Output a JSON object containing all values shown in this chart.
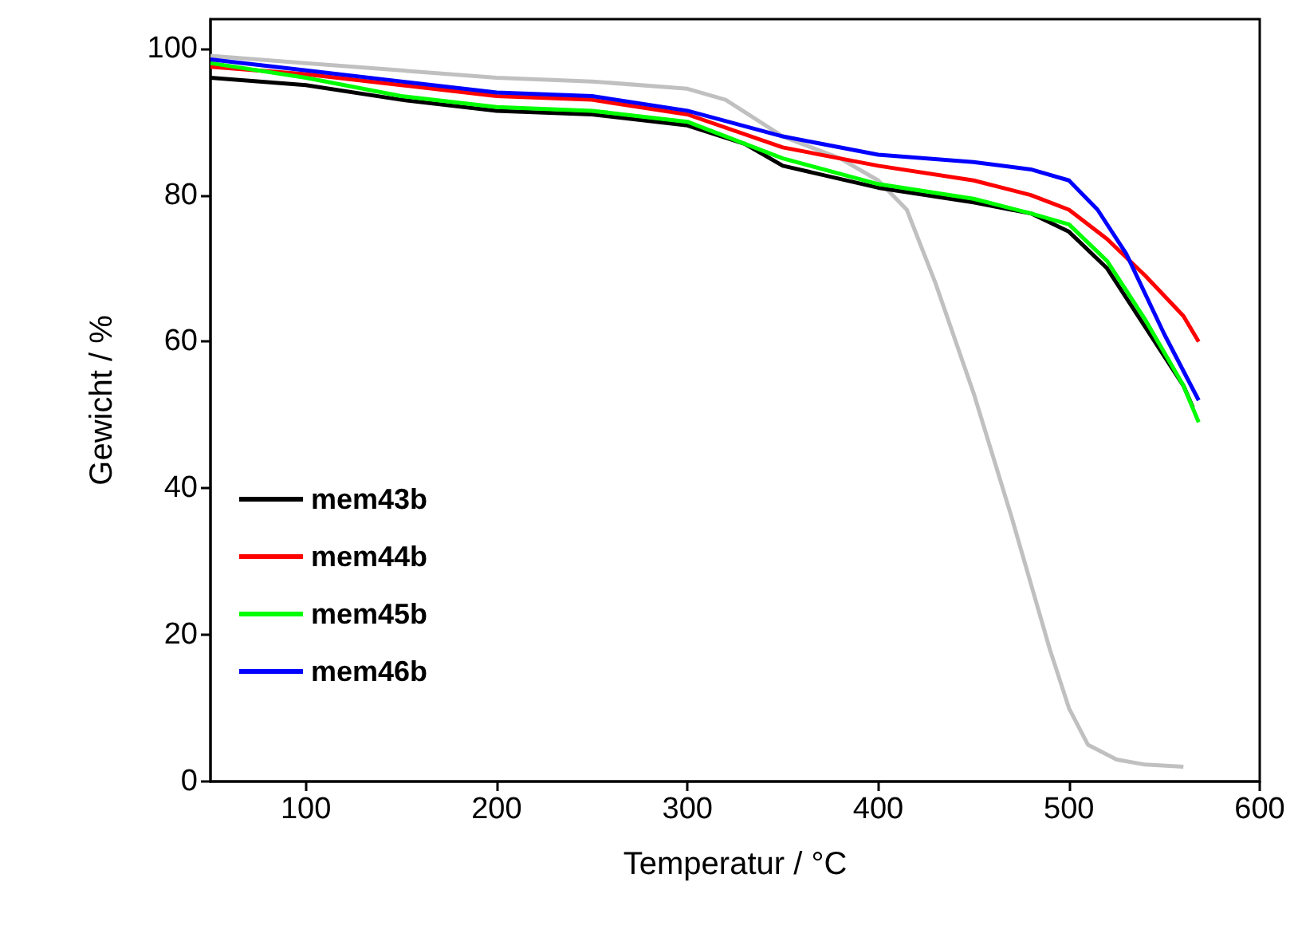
{
  "chart_data": {
    "type": "line",
    "xlabel": "Temperatur / °C",
    "ylabel": "Gewicht / %",
    "xlim": [
      50,
      600
    ],
    "xticks": [
      100,
      200,
      300,
      400,
      500,
      600
    ],
    "ylim": [
      0,
      104
    ],
    "yticks": [
      0,
      20,
      40,
      60,
      80,
      100
    ],
    "grid": false,
    "legend": "bottom left",
    "marker": "none",
    "line_style": "solid",
    "series": [
      {
        "name": "mem43b",
        "color": "#000000",
        "x": [
          50,
          100,
          150,
          200,
          250,
          300,
          330,
          350,
          400,
          450,
          480,
          500,
          520,
          540,
          560,
          565
        ],
        "values": [
          96,
          95,
          93,
          91.5,
          91,
          89.5,
          87,
          84,
          81,
          79,
          77.5,
          75,
          70,
          62,
          54,
          51
        ]
      },
      {
        "name": "mem44b",
        "color": "#ff0000",
        "x": [
          50,
          100,
          150,
          200,
          250,
          300,
          350,
          400,
          450,
          480,
          500,
          520,
          540,
          560,
          568
        ],
        "values": [
          97.5,
          96.5,
          95,
          93.5,
          93,
          91,
          86.5,
          84,
          82,
          80,
          78,
          74,
          69,
          63.5,
          60
        ]
      },
      {
        "name": "mem45b",
        "color": "#00ff00",
        "x": [
          50,
          100,
          150,
          200,
          250,
          300,
          350,
          400,
          450,
          480,
          500,
          520,
          540,
          560,
          568
        ],
        "values": [
          98,
          96,
          93.5,
          92,
          91.5,
          90,
          85,
          81.5,
          79.5,
          77.5,
          76,
          71,
          63,
          54,
          49
        ]
      },
      {
        "name": "mem46b",
        "color": "#0000ff",
        "x": [
          50,
          100,
          150,
          200,
          250,
          300,
          350,
          400,
          450,
          480,
          500,
          515,
          530,
          550,
          568
        ],
        "values": [
          98.5,
          97,
          95.5,
          94,
          93.5,
          91.5,
          88,
          85.5,
          84.5,
          83.5,
          82,
          78,
          72,
          61,
          52
        ]
      },
      {
        "color": "#c0c0c0",
        "x": [
          50,
          100,
          200,
          250,
          300,
          320,
          350,
          380,
          400,
          415,
          430,
          450,
          470,
          490,
          500,
          510,
          525,
          540,
          560
        ],
        "values": [
          99,
          98,
          96,
          95.5,
          94.5,
          93,
          88,
          85,
          82,
          78,
          68,
          53,
          36,
          18,
          10,
          5,
          3,
          2.3,
          2
        ]
      }
    ]
  }
}
